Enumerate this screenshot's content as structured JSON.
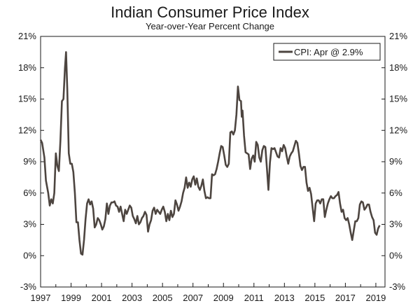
{
  "chart_data": {
    "type": "line",
    "title": "Indian Consumer Price Index",
    "subtitle": "Year-over-Year Percent Change",
    "xlabel": "",
    "ylabel": "",
    "xlim": [
      1997.0,
      2019.6
    ],
    "ylim": [
      -3,
      21
    ],
    "x_ticks": [
      "1997",
      "1999",
      "2001",
      "2003",
      "2005",
      "2007",
      "2009",
      "2011",
      "2013",
      "2015",
      "2017",
      "2019"
    ],
    "y_ticks_left": [
      "21%",
      "18%",
      "15%",
      "12%",
      "9%",
      "6%",
      "3%",
      "0%",
      "-3%"
    ],
    "y_ticks_right": [
      "21%",
      "18%",
      "15%",
      "12%",
      "9%",
      "6%",
      "3%",
      "0%",
      "-3%"
    ],
    "grid": false,
    "legend_position": "top-right",
    "colors": {
      "line": "#4d4540",
      "axis": "#1a1a1a"
    },
    "series": [
      {
        "name": "CPI: Apr @ 2.9%",
        "points": [
          [
            1997.0,
            11.1
          ],
          [
            1997.1,
            10.8
          ],
          [
            1997.25,
            9.4
          ],
          [
            1997.35,
            7.2
          ],
          [
            1997.5,
            6.0
          ],
          [
            1997.6,
            4.8
          ],
          [
            1997.7,
            5.4
          ],
          [
            1997.8,
            5.0
          ],
          [
            1997.9,
            6.0
          ],
          [
            1998.0,
            9.8
          ],
          [
            1998.1,
            8.6
          ],
          [
            1998.2,
            8.1
          ],
          [
            1998.3,
            11.0
          ],
          [
            1998.4,
            14.8
          ],
          [
            1998.5,
            15.0
          ],
          [
            1998.6,
            18.0
          ],
          [
            1998.67,
            19.5
          ],
          [
            1998.75,
            16.0
          ],
          [
            1998.85,
            9.8
          ],
          [
            1998.95,
            8.8
          ],
          [
            1999.05,
            8.8
          ],
          [
            1999.15,
            8.0
          ],
          [
            1999.25,
            6.0
          ],
          [
            1999.35,
            3.2
          ],
          [
            1999.45,
            3.2
          ],
          [
            1999.55,
            1.5
          ],
          [
            1999.65,
            0.2
          ],
          [
            1999.75,
            0.1
          ],
          [
            1999.85,
            1.5
          ],
          [
            1999.95,
            3.5
          ],
          [
            2000.05,
            5.0
          ],
          [
            2000.15,
            5.4
          ],
          [
            2000.25,
            4.9
          ],
          [
            2000.35,
            5.2
          ],
          [
            2000.45,
            4.5
          ],
          [
            2000.55,
            2.7
          ],
          [
            2000.65,
            3.0
          ],
          [
            2000.75,
            3.6
          ],
          [
            2000.85,
            3.4
          ],
          [
            2000.95,
            3.0
          ],
          [
            2001.05,
            2.5
          ],
          [
            2001.15,
            2.8
          ],
          [
            2001.25,
            3.5
          ],
          [
            2001.35,
            5.0
          ],
          [
            2001.45,
            4.0
          ],
          [
            2001.55,
            4.8
          ],
          [
            2001.65,
            5.1
          ],
          [
            2001.75,
            5.1
          ],
          [
            2001.85,
            5.2
          ],
          [
            2001.95,
            4.8
          ],
          [
            2002.05,
            4.7
          ],
          [
            2002.15,
            4.2
          ],
          [
            2002.25,
            4.7
          ],
          [
            2002.35,
            4.0
          ],
          [
            2002.45,
            3.3
          ],
          [
            2002.55,
            4.4
          ],
          [
            2002.65,
            4.0
          ],
          [
            2002.75,
            4.4
          ],
          [
            2002.85,
            4.8
          ],
          [
            2002.95,
            4.6
          ],
          [
            2003.05,
            3.8
          ],
          [
            2003.15,
            3.5
          ],
          [
            2003.25,
            3.1
          ],
          [
            2003.35,
            3.8
          ],
          [
            2003.45,
            3.0
          ],
          [
            2003.55,
            3.2
          ],
          [
            2003.65,
            3.6
          ],
          [
            2003.75,
            3.8
          ],
          [
            2003.85,
            4.2
          ],
          [
            2003.95,
            3.9
          ],
          [
            2004.05,
            2.3
          ],
          [
            2004.15,
            3.0
          ],
          [
            2004.25,
            3.4
          ],
          [
            2004.35,
            4.3
          ],
          [
            2004.45,
            4.6
          ],
          [
            2004.55,
            4.0
          ],
          [
            2004.65,
            4.4
          ],
          [
            2004.75,
            4.2
          ],
          [
            2004.85,
            4.0
          ],
          [
            2004.95,
            4.4
          ],
          [
            2005.05,
            4.7
          ],
          [
            2005.15,
            4.2
          ],
          [
            2005.25,
            3.3
          ],
          [
            2005.35,
            4.0
          ],
          [
            2005.45,
            3.4
          ],
          [
            2005.55,
            4.3
          ],
          [
            2005.65,
            3.7
          ],
          [
            2005.75,
            4.0
          ],
          [
            2005.85,
            5.3
          ],
          [
            2005.95,
            4.9
          ],
          [
            2006.05,
            4.3
          ],
          [
            2006.15,
            4.7
          ],
          [
            2006.25,
            5.2
          ],
          [
            2006.35,
            6.0
          ],
          [
            2006.45,
            6.5
          ],
          [
            2006.55,
            7.5
          ],
          [
            2006.65,
            6.5
          ],
          [
            2006.75,
            7.0
          ],
          [
            2006.85,
            6.6
          ],
          [
            2006.95,
            7.3
          ],
          [
            2007.05,
            7.6
          ],
          [
            2007.15,
            6.8
          ],
          [
            2007.25,
            7.4
          ],
          [
            2007.35,
            6.6
          ],
          [
            2007.45,
            6.3
          ],
          [
            2007.55,
            6.7
          ],
          [
            2007.65,
            7.3
          ],
          [
            2007.75,
            6.2
          ],
          [
            2007.85,
            5.5
          ],
          [
            2007.95,
            5.6
          ],
          [
            2008.05,
            5.5
          ],
          [
            2008.15,
            5.5
          ],
          [
            2008.25,
            7.8
          ],
          [
            2008.35,
            7.7
          ],
          [
            2008.45,
            7.8
          ],
          [
            2008.55,
            8.3
          ],
          [
            2008.65,
            9.0
          ],
          [
            2008.75,
            9.8
          ],
          [
            2008.85,
            10.5
          ],
          [
            2008.95,
            10.4
          ],
          [
            2009.05,
            9.6
          ],
          [
            2009.15,
            8.7
          ],
          [
            2009.25,
            8.5
          ],
          [
            2009.35,
            8.8
          ],
          [
            2009.45,
            11.8
          ],
          [
            2009.55,
            11.9
          ],
          [
            2009.65,
            11.6
          ],
          [
            2009.75,
            12.0
          ],
          [
            2009.85,
            13.5
          ],
          [
            2009.95,
            16.2
          ],
          [
            2010.05,
            14.9
          ],
          [
            2010.15,
            14.8
          ],
          [
            2010.2,
            13.3
          ],
          [
            2010.25,
            13.9
          ],
          [
            2010.35,
            11.5
          ],
          [
            2010.45,
            9.9
          ],
          [
            2010.55,
            9.8
          ],
          [
            2010.65,
            9.7
          ],
          [
            2010.75,
            8.3
          ],
          [
            2010.85,
            9.3
          ],
          [
            2010.95,
            9.6
          ],
          [
            2011.05,
            9.0
          ],
          [
            2011.15,
            10.9
          ],
          [
            2011.25,
            10.6
          ],
          [
            2011.35,
            9.4
          ],
          [
            2011.45,
            9.0
          ],
          [
            2011.55,
            10.1
          ],
          [
            2011.65,
            10.5
          ],
          [
            2011.75,
            10.4
          ],
          [
            2011.85,
            8.4
          ],
          [
            2011.95,
            6.3
          ],
          [
            2012.05,
            8.9
          ],
          [
            2012.15,
            10.3
          ],
          [
            2012.25,
            10.2
          ],
          [
            2012.35,
            10.3
          ],
          [
            2012.45,
            9.9
          ],
          [
            2012.55,
            9.5
          ],
          [
            2012.65,
            9.4
          ],
          [
            2012.75,
            10.3
          ],
          [
            2012.85,
            10.0
          ],
          [
            2012.95,
            10.6
          ],
          [
            2013.05,
            10.3
          ],
          [
            2013.15,
            9.5
          ],
          [
            2013.25,
            8.8
          ],
          [
            2013.35,
            9.5
          ],
          [
            2013.45,
            9.8
          ],
          [
            2013.55,
            10.0
          ],
          [
            2013.65,
            10.5
          ],
          [
            2013.75,
            11.0
          ],
          [
            2013.85,
            10.8
          ],
          [
            2013.95,
            9.8
          ],
          [
            2014.05,
            8.6
          ],
          [
            2014.15,
            8.2
          ],
          [
            2014.25,
            8.5
          ],
          [
            2014.35,
            8.5
          ],
          [
            2014.45,
            7.0
          ],
          [
            2014.55,
            6.2
          ],
          [
            2014.65,
            6.5
          ],
          [
            2014.75,
            5.9
          ],
          [
            2014.85,
            4.6
          ],
          [
            2014.95,
            3.3
          ],
          [
            2015.05,
            5.0
          ],
          [
            2015.15,
            5.3
          ],
          [
            2015.25,
            5.3
          ],
          [
            2015.35,
            5.0
          ],
          [
            2015.45,
            5.4
          ],
          [
            2015.55,
            5.4
          ],
          [
            2015.65,
            3.7
          ],
          [
            2015.75,
            4.4
          ],
          [
            2015.85,
            5.0
          ],
          [
            2015.95,
            5.4
          ],
          [
            2016.05,
            5.7
          ],
          [
            2016.15,
            5.5
          ],
          [
            2016.25,
            5.5
          ],
          [
            2016.35,
            5.7
          ],
          [
            2016.45,
            5.8
          ],
          [
            2016.55,
            6.1
          ],
          [
            2016.65,
            5.0
          ],
          [
            2016.75,
            4.2
          ],
          [
            2016.85,
            4.4
          ],
          [
            2016.95,
            3.6
          ],
          [
            2017.05,
            3.4
          ],
          [
            2017.15,
            3.6
          ],
          [
            2017.25,
            3.0
          ],
          [
            2017.35,
            2.2
          ],
          [
            2017.45,
            1.5
          ],
          [
            2017.55,
            2.4
          ],
          [
            2017.65,
            3.3
          ],
          [
            2017.75,
            3.3
          ],
          [
            2017.85,
            3.6
          ],
          [
            2017.95,
            4.9
          ],
          [
            2018.05,
            5.2
          ],
          [
            2018.15,
            5.1
          ],
          [
            2018.25,
            4.4
          ],
          [
            2018.35,
            4.6
          ],
          [
            2018.45,
            4.9
          ],
          [
            2018.55,
            4.9
          ],
          [
            2018.65,
            4.2
          ],
          [
            2018.75,
            3.7
          ],
          [
            2018.85,
            3.4
          ],
          [
            2018.95,
            2.2
          ],
          [
            2019.05,
            2.0
          ],
          [
            2019.15,
            2.6
          ],
          [
            2019.25,
            2.9
          ]
        ]
      }
    ]
  }
}
